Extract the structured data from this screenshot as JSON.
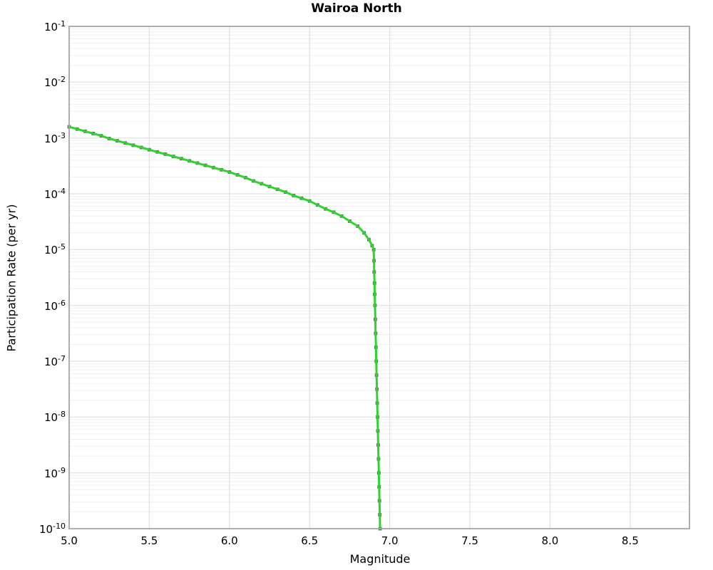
{
  "chart_data": {
    "type": "line",
    "title": "Wairoa North",
    "xlabel": "Magnitude",
    "ylabel": "Participation Rate (per yr)",
    "xlim": [
      5.0,
      8.87
    ],
    "ylog_lim": [
      -1,
      -10
    ],
    "xticks": [
      {
        "value": 5.0,
        "label": "5.0"
      },
      {
        "value": 5.5,
        "label": "5.5"
      },
      {
        "value": 6.0,
        "label": "6.0"
      },
      {
        "value": 6.5,
        "label": "6.5"
      },
      {
        "value": 7.0,
        "label": "7.0"
      },
      {
        "value": 7.5,
        "label": "7.5"
      },
      {
        "value": 8.0,
        "label": "8.0"
      },
      {
        "value": 8.5,
        "label": "8.5"
      }
    ],
    "yticks": [
      {
        "base": "10",
        "exp": "-1"
      },
      {
        "base": "10",
        "exp": "-2"
      },
      {
        "base": "10",
        "exp": "-3"
      },
      {
        "base": "10",
        "exp": "-4"
      },
      {
        "base": "10",
        "exp": "-5"
      },
      {
        "base": "10",
        "exp": "-6"
      },
      {
        "base": "10",
        "exp": "-7"
      },
      {
        "base": "10",
        "exp": "-8"
      },
      {
        "base": "10",
        "exp": "-9"
      },
      {
        "base": "10",
        "exp": "-10"
      }
    ],
    "grid": {
      "minor_color": "#efefef",
      "major_color": "#e0e0e0",
      "spine_color": "#a6a6a6"
    },
    "series": [
      {
        "name": "participation-rate",
        "line_color": "#2ed32e",
        "marker_color": "#6b6b6b",
        "marker": "square",
        "points_m_log10rate": [
          [
            5.0,
            -2.8
          ],
          [
            5.05,
            -2.84
          ],
          [
            5.1,
            -2.88
          ],
          [
            5.15,
            -2.92
          ],
          [
            5.2,
            -2.96
          ],
          [
            5.25,
            -3.01
          ],
          [
            5.3,
            -3.05
          ],
          [
            5.35,
            -3.09
          ],
          [
            5.4,
            -3.13
          ],
          [
            5.45,
            -3.17
          ],
          [
            5.5,
            -3.21
          ],
          [
            5.55,
            -3.25
          ],
          [
            5.6,
            -3.29
          ],
          [
            5.65,
            -3.33
          ],
          [
            5.7,
            -3.37
          ],
          [
            5.75,
            -3.41
          ],
          [
            5.8,
            -3.45
          ],
          [
            5.85,
            -3.49
          ],
          [
            5.9,
            -3.53
          ],
          [
            5.95,
            -3.57
          ],
          [
            6.0,
            -3.61
          ],
          [
            6.05,
            -3.66
          ],
          [
            6.1,
            -3.71
          ],
          [
            6.15,
            -3.77
          ],
          [
            6.2,
            -3.82
          ],
          [
            6.25,
            -3.87
          ],
          [
            6.3,
            -3.92
          ],
          [
            6.35,
            -3.97
          ],
          [
            6.4,
            -4.03
          ],
          [
            6.45,
            -4.08
          ],
          [
            6.5,
            -4.13
          ],
          [
            6.55,
            -4.2
          ],
          [
            6.6,
            -4.27
          ],
          [
            6.65,
            -4.33
          ],
          [
            6.7,
            -4.4
          ],
          [
            6.75,
            -4.49
          ],
          [
            6.8,
            -4.58
          ],
          [
            6.84,
            -4.7
          ],
          [
            6.87,
            -4.82
          ],
          [
            6.89,
            -4.93
          ],
          [
            6.9,
            -5.0
          ],
          [
            6.902,
            -5.2
          ],
          [
            6.903,
            -5.4
          ],
          [
            6.905,
            -5.6
          ],
          [
            6.906,
            -5.8
          ],
          [
            6.908,
            -6.0
          ],
          [
            6.91,
            -6.25
          ],
          [
            6.912,
            -6.5
          ],
          [
            6.914,
            -6.75
          ],
          [
            6.916,
            -7.0
          ],
          [
            6.918,
            -7.25
          ],
          [
            6.92,
            -7.5
          ],
          [
            6.922,
            -7.75
          ],
          [
            6.924,
            -8.0
          ],
          [
            6.926,
            -8.25
          ],
          [
            6.928,
            -8.5
          ],
          [
            6.93,
            -8.75
          ],
          [
            6.932,
            -9.0
          ],
          [
            6.934,
            -9.25
          ],
          [
            6.936,
            -9.5
          ],
          [
            6.938,
            -9.75
          ],
          [
            6.94,
            -10.0
          ]
        ]
      }
    ]
  }
}
